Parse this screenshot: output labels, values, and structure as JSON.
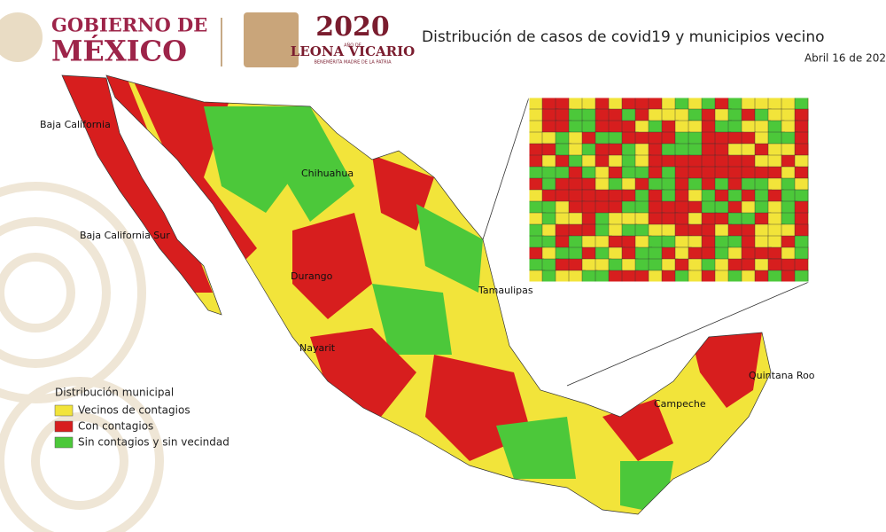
{
  "header": {
    "logo_line1": "GOBIERNO DE",
    "logo_line2": "MÉXICO",
    "year": "2020",
    "year_subtitle": "AÑO DE",
    "honoree": "LEONA VICARIO",
    "honoree_subtitle": "BENEMÉRITA MADRE DE LA PATRIA"
  },
  "title": "Distribución de casos de covid19 y municipios vecino",
  "date": "Abril 16 de 202",
  "legend": {
    "title": "Distribución municipal",
    "items": [
      {
        "label": "Vecinos de contagios",
        "color": "#f2e43a"
      },
      {
        "label": "Con contagios",
        "color": "#d71e1e"
      },
      {
        "label": "Sin contagios y sin vecindad",
        "color": "#4cc83a"
      }
    ]
  },
  "map_labels": [
    "Baja California",
    "Baja California Sur",
    "Chihuahua",
    "Durango",
    "Nayarit",
    "Tamaulipas",
    "Campeche",
    "Quintana Roo"
  ]
}
